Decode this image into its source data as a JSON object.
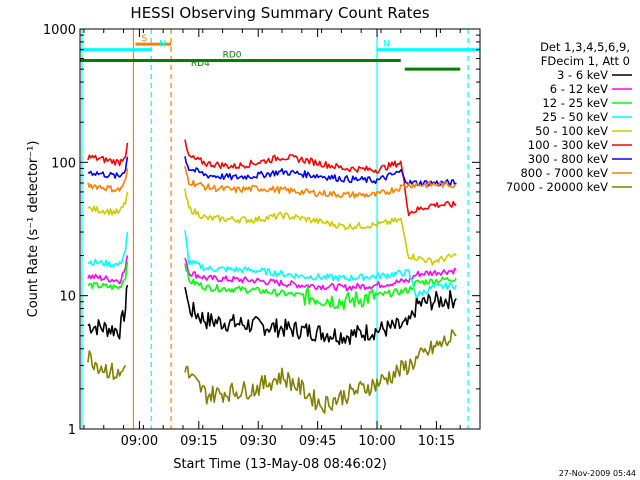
{
  "chart_data": {
    "type": "line",
    "title": "HESSI Observing Summary Count Rates",
    "xlabel": "Start Time (13-May-08 08:46:02)",
    "ylabel": "Count Rate (s⁻¹ detector⁻¹)",
    "yscale": "log",
    "ylim": [
      1,
      1000
    ],
    "xlim_minutes": [
      -1,
      100
    ],
    "x_tick_labels": [
      "09:00",
      "09:15",
      "09:30",
      "09:45",
      "10:00",
      "10:15"
    ],
    "x_tick_minutes": [
      14,
      29,
      44,
      59,
      74,
      89
    ],
    "y_tick_labels": [
      "1",
      "10",
      "100",
      "1000"
    ],
    "y_tick_values": [
      1,
      10,
      100,
      1000
    ],
    "legend_header": [
      "Det 1,3,4,5,6,9,",
      "FDecim 1, Att 0"
    ],
    "legend_position": "right",
    "series": [
      {
        "name": "3 - 6 keV",
        "color": "#000000",
        "segments": [
          [
            [
              1,
              6
            ],
            [
              9,
              5.5
            ],
            [
              10.5,
              8
            ],
            [
              11,
              12
            ]
          ],
          [
            [
              25.5,
              12
            ],
            [
              26.5,
              8
            ],
            [
              31,
              6.5
            ],
            [
              43,
              6
            ],
            [
              55,
              5.5
            ],
            [
              66,
              5
            ],
            [
              74,
              5.5
            ],
            [
              82,
              6
            ],
            [
              84,
              8.5
            ],
            [
              87,
              9
            ],
            [
              94,
              9.5
            ]
          ]
        ]
      },
      {
        "name": "6 - 12 keV",
        "color": "#ff00ff",
        "segments": [
          [
            [
              1,
              14
            ],
            [
              9,
              13
            ],
            [
              10.5,
              16
            ],
            [
              11,
              20
            ]
          ],
          [
            [
              25.5,
              20
            ],
            [
              26.5,
              15
            ],
            [
              31,
              13.5
            ],
            [
              43,
              13
            ],
            [
              55,
              12
            ],
            [
              66,
              11.5
            ],
            [
              74,
              12
            ],
            [
              82,
              13
            ],
            [
              84,
              14.5
            ],
            [
              94,
              15.5
            ]
          ]
        ]
      },
      {
        "name": "12 - 25 keV",
        "color": "#00ff00",
        "segments": [
          [
            [
              1,
              12
            ],
            [
              9,
              11.5
            ],
            [
              10.5,
              14
            ],
            [
              11,
              18
            ]
          ],
          [
            [
              25.5,
              18
            ],
            [
              26.5,
              13
            ],
            [
              31,
              11.5
            ],
            [
              43,
              11
            ],
            [
              55,
              10
            ],
            [
              66,
              9
            ],
            [
              74,
              10
            ],
            [
              82,
              11
            ],
            [
              84,
              12.5
            ],
            [
              94,
              13.5
            ]
          ]
        ]
      },
      {
        "name": "25 - 50 keV",
        "color": "#00ffff",
        "segments": [
          [
            [
              1,
              18
            ],
            [
              9,
              17
            ],
            [
              10.5,
              22
            ],
            [
              11,
              30
            ]
          ],
          [
            [
              25.5,
              30
            ],
            [
              26.5,
              18
            ],
            [
              31,
              16
            ],
            [
              43,
              15.5
            ],
            [
              55,
              14
            ],
            [
              66,
              13.5
            ],
            [
              74,
              14
            ],
            [
              82,
              15
            ],
            [
              84,
              10
            ],
            [
              88,
              11.5
            ],
            [
              94,
              12
            ]
          ]
        ]
      },
      {
        "name": "50 - 100 keV",
        "color": "#cccc00",
        "segments": [
          [
            [
              1,
              45
            ],
            [
              9,
              42
            ],
            [
              10.5,
              50
            ],
            [
              11,
              60
            ]
          ],
          [
            [
              25.5,
              60
            ],
            [
              26.5,
              45
            ],
            [
              31,
              38
            ],
            [
              43,
              37
            ],
            [
              50,
              40
            ],
            [
              55,
              38
            ],
            [
              66,
              33
            ],
            [
              74,
              34
            ],
            [
              80,
              37
            ],
            [
              82,
              20
            ],
            [
              88,
              18
            ],
            [
              94,
              20
            ]
          ]
        ]
      },
      {
        "name": "100 - 300 keV",
        "color": "#ff0000",
        "segments": [
          [
            [
              1,
              110
            ],
            [
              9,
              100
            ],
            [
              10.5,
              115
            ],
            [
              11,
              140
            ]
          ],
          [
            [
              25.5,
              140
            ],
            [
              26.5,
              110
            ],
            [
              31,
              98
            ],
            [
              38,
              93
            ],
            [
              44,
              100
            ],
            [
              50,
              110
            ],
            [
              55,
              105
            ],
            [
              66,
              90
            ],
            [
              74,
              88
            ],
            [
              80,
              100
            ],
            [
              82,
              42
            ],
            [
              88,
              48
            ],
            [
              94,
              48
            ]
          ]
        ]
      },
      {
        "name": "300 - 800 keV",
        "color": "#0000ff",
        "segments": [
          [
            [
              1,
              85
            ],
            [
              9,
              78
            ],
            [
              10.5,
              90
            ],
            [
              11,
              110
            ]
          ],
          [
            [
              25.5,
              110
            ],
            [
              26.5,
              90
            ],
            [
              31,
              80
            ],
            [
              38,
              77
            ],
            [
              44,
              80
            ],
            [
              50,
              85
            ],
            [
              55,
              82
            ],
            [
              66,
              75
            ],
            [
              74,
              73
            ],
            [
              80,
              85
            ],
            [
              82,
              70
            ],
            [
              94,
              70
            ]
          ]
        ]
      },
      {
        "name": "800 - 7000 keV",
        "color": "#ff8000",
        "segments": [
          [
            [
              1,
              68
            ],
            [
              9,
              62
            ],
            [
              10.5,
              72
            ],
            [
              11,
              90
            ]
          ],
          [
            [
              25.5,
              90
            ],
            [
              26.5,
              72
            ],
            [
              31,
              65
            ],
            [
              38,
              62
            ],
            [
              44,
              64
            ],
            [
              50,
              62
            ],
            [
              55,
              60
            ],
            [
              66,
              57
            ],
            [
              74,
              57
            ],
            [
              80,
              65
            ],
            [
              82,
              68
            ],
            [
              94,
              68
            ]
          ]
        ]
      },
      {
        "name": "7000 - 20000 keV",
        "color": "#808000",
        "segments": [
          [
            [
              1,
              3.5
            ],
            [
              4,
              3
            ],
            [
              9,
              2.5
            ],
            [
              10.5,
              3
            ]
          ],
          [
            [
              25.5,
              3
            ],
            [
              26.5,
              2.5
            ],
            [
              31,
              1.8
            ],
            [
              43,
              2
            ],
            [
              50,
              2.5
            ],
            [
              55,
              2
            ],
            [
              60,
              1.5
            ],
            [
              66,
              1.8
            ],
            [
              74,
              2.2
            ],
            [
              82,
              3
            ],
            [
              88,
              4
            ],
            [
              94,
              5
            ]
          ]
        ]
      }
    ],
    "annotations": {
      "bars": [
        {
          "label": "S",
          "color": "#ff8000",
          "x": [
            13,
            22
          ],
          "y": 770
        },
        {
          "label": "N",
          "color": "#00ffff",
          "x": [
            -1,
            17
          ],
          "y": 700,
          "label_x": 19
        },
        {
          "label": "N",
          "color": "#00ffff",
          "x": [
            74,
            100
          ],
          "y": 700
        },
        {
          "label": "RD0",
          "color": "#008000",
          "x": [
            -1,
            80
          ],
          "y": 580,
          "label_x": 35
        },
        {
          "label": "RD4",
          "color": "#008000",
          "x": [
            81,
            95
          ],
          "y": 500,
          "label_x": 27
        }
      ],
      "vlines": [
        {
          "x": -0.5,
          "color": "#00ffff",
          "style": "solid"
        },
        {
          "x": 12.5,
          "color": "#ff8000",
          "style": "solid"
        },
        {
          "x": 17,
          "color": "#00ffff",
          "style": "dashed"
        },
        {
          "x": 22,
          "color": "#ff8000",
          "style": "dashed"
        },
        {
          "x": 74,
          "color": "#00ffff",
          "style": "solid"
        },
        {
          "x": 97,
          "color": "#00ffff",
          "style": "dashed"
        }
      ]
    }
  },
  "footer": {
    "timestamp": "27-Nov-2009 05:44"
  }
}
